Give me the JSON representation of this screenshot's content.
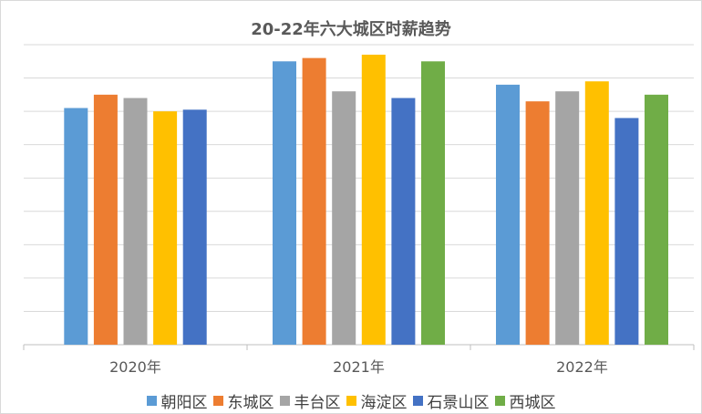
{
  "chart_data": {
    "type": "bar",
    "title": "20-22年六大城区时薪趋势",
    "categories": [
      "2020年",
      "2021年",
      "2022年"
    ],
    "series": [
      {
        "name": "朝阳区",
        "color": "#5b9bd5",
        "values": [
          7.1,
          8.5,
          7.8
        ]
      },
      {
        "name": "东城区",
        "color": "#ed7d31",
        "values": [
          7.5,
          8.6,
          7.3
        ]
      },
      {
        "name": "丰台区",
        "color": "#a5a5a5",
        "values": [
          7.4,
          7.6,
          7.6
        ]
      },
      {
        "name": "海淀区",
        "color": "#ffc000",
        "values": [
          7.0,
          8.7,
          7.9
        ]
      },
      {
        "name": "石景山区",
        "color": "#4472c4",
        "values": [
          7.05,
          7.4,
          6.8
        ]
      },
      {
        "name": "西城区",
        "color": "#70ad47",
        "values": [
          null,
          8.5,
          7.5
        ]
      }
    ],
    "ylim": [
      0,
      9
    ],
    "grid": true,
    "legend_position": "bottom"
  }
}
